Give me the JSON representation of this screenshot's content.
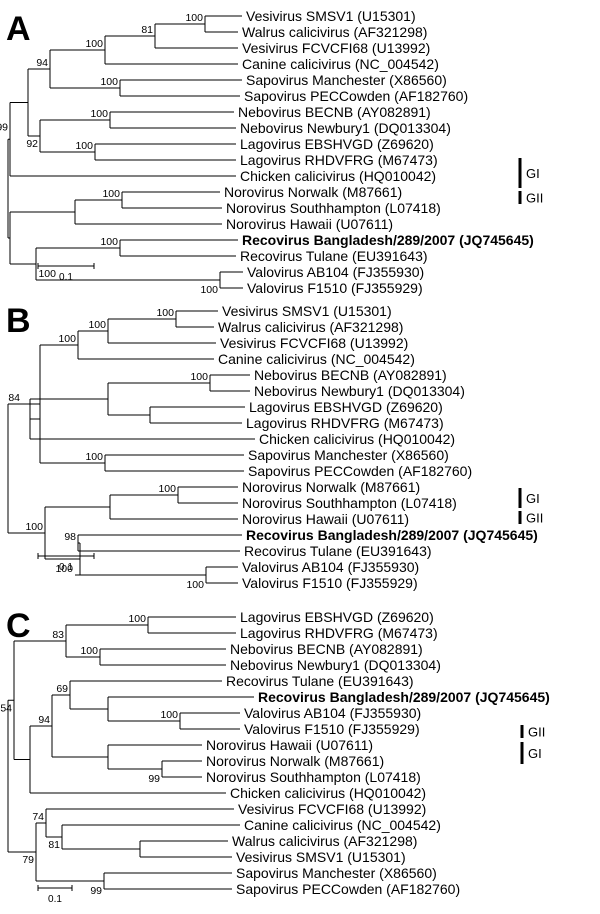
{
  "figure": {
    "panels": [
      {
        "letter": "A",
        "scale_label": "0.1",
        "leaves": [
          {
            "id": "a_smsv1",
            "label": "Vesivirus SMSV1 (U15301)"
          },
          {
            "id": "a_walrus",
            "label": "Walrus calicivirus (AF321298)"
          },
          {
            "id": "a_fcv",
            "label": "Vesivirus FCVCFI68 (U13992)"
          },
          {
            "id": "a_canine",
            "label": "Canine calicivirus (NC_004542)"
          },
          {
            "id": "a_sapman",
            "label": "Sapovirus Manchester (X86560)"
          },
          {
            "id": "a_sappec",
            "label": "Sapovirus PECCowden (AF182760)"
          },
          {
            "id": "a_nebbecnb",
            "label": "Nebovirus BECNB (AY082891)"
          },
          {
            "id": "a_nebnew",
            "label": "Nebovirus Newbury1 (DQ013304)"
          },
          {
            "id": "a_lagebs",
            "label": "Lagovirus EBSHVGD (Z69620)"
          },
          {
            "id": "a_lagrhd",
            "label": "Lagovirus RHDVFRG (M67473)"
          },
          {
            "id": "a_chicken",
            "label": "Chicken calicivirus (HQ010042)"
          },
          {
            "id": "a_norwalk",
            "label": "Norovirus Norwalk (M87661)"
          },
          {
            "id": "a_southampton",
            "label": "Norovirus Southhampton (L07418)"
          },
          {
            "id": "a_hawaii",
            "label": "Norovirus Hawaii (U07611)"
          },
          {
            "id": "a_recobang",
            "label": "Recovirus Bangladesh/289/2007 (JQ745645)",
            "bold": true
          },
          {
            "id": "a_tulane",
            "label": "Recovirus Tulane (EU391643)"
          },
          {
            "id": "a_ab104",
            "label": "Valovirus AB104 (FJ355930)"
          },
          {
            "id": "a_f1510",
            "label": "Valovirus F1510 (FJ355929)"
          }
        ],
        "bootstrap": [
          "100",
          "81",
          "100",
          "94",
          "99",
          "100",
          "100",
          "92",
          "100",
          "100",
          "100",
          "100",
          "100"
        ],
        "groups": [
          "GI",
          "GII"
        ]
      },
      {
        "letter": "B",
        "scale_label": "0.1",
        "leaves": [
          {
            "id": "b_smsv1",
            "label": "Vesivirus SMSV1 (U15301)"
          },
          {
            "id": "b_walrus",
            "label": "Walrus calicivirus (AF321298)"
          },
          {
            "id": "b_fcv",
            "label": "Vesivirus FCVCFI68 (U13992)"
          },
          {
            "id": "b_canine",
            "label": "Canine calicivirus (NC_004542)"
          },
          {
            "id": "b_nebbecnb",
            "label": "Nebovirus BECNB (AY082891)"
          },
          {
            "id": "b_nebnew",
            "label": "Nebovirus Newbury1 (DQ013304)"
          },
          {
            "id": "b_lagebs",
            "label": "Lagovirus EBSHVGD (Z69620)"
          },
          {
            "id": "b_lagrhd",
            "label": "Lagovirus RHDVFRG (M67473)"
          },
          {
            "id": "b_chicken",
            "label": "Chicken calicivirus (HQ010042)"
          },
          {
            "id": "b_sapman",
            "label": "Sapovirus Manchester (X86560)"
          },
          {
            "id": "b_sappec",
            "label": "Sapovirus PECCowden (AF182760)"
          },
          {
            "id": "b_norwalk",
            "label": "Norovirus Norwalk (M87661)"
          },
          {
            "id": "b_southampton",
            "label": "Norovirus Southhampton (L07418)"
          },
          {
            "id": "b_hawaii",
            "label": "Norovirus Hawaii (U07611)"
          },
          {
            "id": "b_recobang",
            "label": "Recovirus Bangladesh/289/2007 (JQ745645)",
            "bold": true
          },
          {
            "id": "b_tulane",
            "label": "Recovirus Tulane (EU391643)"
          },
          {
            "id": "b_ab104",
            "label": "Valovirus AB104 (FJ355930)"
          },
          {
            "id": "b_f1510",
            "label": "Valovirus F1510 (FJ355929)"
          }
        ],
        "bootstrap": [
          "100",
          "100",
          "100",
          "100",
          "84",
          "100",
          "100",
          "98",
          "100",
          "100",
          "100"
        ],
        "groups": [
          "GI",
          "GII"
        ]
      },
      {
        "letter": "C",
        "scale_label": "0.1",
        "leaves": [
          {
            "id": "c_lagebs",
            "label": "Lagovirus EBSHVGD (Z69620)"
          },
          {
            "id": "c_lagrhd",
            "label": "Lagovirus RHDVFRG (M67473)"
          },
          {
            "id": "c_nebbecnb",
            "label": "Nebovirus BECNB (AY082891)"
          },
          {
            "id": "c_nebnew",
            "label": "Nebovirus Newbury1 (DQ013304)"
          },
          {
            "id": "c_tulane",
            "label": "Recovirus Tulane (EU391643)"
          },
          {
            "id": "c_recobang",
            "label": "Recovirus Bangladesh/289/2007 (JQ745645)",
            "bold": true
          },
          {
            "id": "c_ab104",
            "label": "Valovirus AB104 (FJ355930)"
          },
          {
            "id": "c_f1510",
            "label": "Valovirus F1510 (FJ355929)"
          },
          {
            "id": "c_hawaii",
            "label": "Norovirus Hawaii (U07611)"
          },
          {
            "id": "c_norwalk",
            "label": "Norovirus Norwalk (M87661)"
          },
          {
            "id": "c_southampton",
            "label": "Norovirus Southhampton (L07418)"
          },
          {
            "id": "c_chicken",
            "label": "Chicken calicivirus (HQ010042)"
          },
          {
            "id": "c_fcv",
            "label": "Vesivirus FCVCFI68 (U13992)"
          },
          {
            "id": "c_canine",
            "label": "Canine calicivirus (NC_004542)"
          },
          {
            "id": "c_walrus",
            "label": "Walrus calicivirus (AF321298)"
          },
          {
            "id": "c_smsv1",
            "label": "Vesivirus SMSV1 (U15301)"
          },
          {
            "id": "c_sapman",
            "label": "Sapovirus Manchester (X86560)"
          },
          {
            "id": "c_sappec",
            "label": "Sapovirus PECCowden (AF182760)"
          }
        ],
        "bootstrap": [
          "100",
          "83",
          "100",
          "69",
          "100",
          "94",
          "100",
          "99",
          "54",
          "74",
          "81",
          "79",
          "99"
        ],
        "groups": [
          "GII",
          "GI"
        ]
      }
    ]
  }
}
